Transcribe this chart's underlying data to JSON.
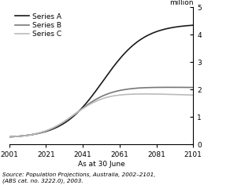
{
  "xlabel": "As at 30 June",
  "ylabel_right": "million",
  "x_start": 2001,
  "x_end": 2101,
  "ylim": [
    0,
    5
  ],
  "yticks": [
    0,
    1,
    2,
    3,
    4,
    5
  ],
  "xticks": [
    2001,
    2021,
    2041,
    2061,
    2081,
    2101
  ],
  "series_A_color": "#1a1a1a",
  "series_B_color": "#777777",
  "series_C_color": "#bbbbbb",
  "legend_labels": [
    "Series A",
    "Series B",
    "Series C"
  ],
  "source_text": "Source: Population Projections, Australia, 2002–2101,\n(ABS cat. no. 3222.0), 2003.",
  "bg_color": "#ffffff",
  "line_width": 1.2
}
